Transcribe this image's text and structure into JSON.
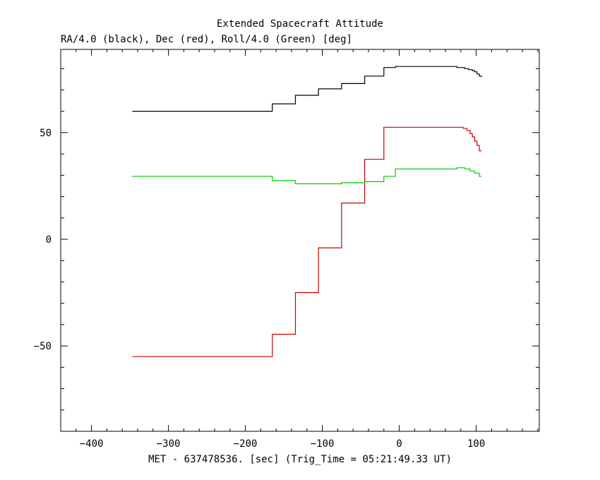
{
  "chart_data": {
    "type": "line",
    "title": "Extended Spacecraft Attitude",
    "subtitle": "RA/4.0 (black), Dec (red), Roll/4.0 (Green) [deg]",
    "xlabel": "MET - 637478536. [sec] (Trig_Time = 05:21:49.33 UT)",
    "ylabel": "",
    "xlim": [
      -440,
      182
    ],
    "ylim": [
      -90,
      89
    ],
    "x_ticks": [
      -400,
      -300,
      -200,
      -100,
      0,
      100
    ],
    "x_tick_labels": [
      "−400",
      "−300",
      "−200",
      "−100",
      "0",
      "100"
    ],
    "y_ticks": [
      -50,
      0,
      50
    ],
    "y_tick_labels": [
      "−50",
      "0",
      "50"
    ],
    "grid": false,
    "legend": "none",
    "step": true,
    "series": [
      {
        "color": "#000000",
        "x": [
          -347,
          -165,
          -135,
          -105,
          -75,
          -45,
          -20,
          -5,
          10,
          75,
          85,
          90,
          95,
          98,
          101,
          104,
          107
        ],
        "y": [
          60,
          63.5,
          67.5,
          70.5,
          73,
          76.5,
          80.5,
          81,
          81,
          80.5,
          80,
          79.5,
          79,
          78.5,
          77.5,
          76.5,
          76
        ]
      },
      {
        "color": "#cc0000",
        "x": [
          -347,
          -165,
          -135,
          -105,
          -75,
          -45,
          -20,
          75,
          83,
          88,
          92,
          95,
          98,
          101,
          104,
          107
        ],
        "y": [
          -55,
          -44.5,
          -25,
          -4,
          17,
          37.5,
          52.5,
          52.5,
          52,
          51,
          49.5,
          48,
          46,
          44,
          41.5,
          41.5
        ]
      },
      {
        "color": "#00cc00",
        "x": [
          -347,
          -165,
          -135,
          -75,
          -45,
          -20,
          -5,
          75,
          85,
          92,
          98,
          104,
          107
        ],
        "y": [
          29.5,
          27.5,
          26,
          26.5,
          27,
          29.5,
          33,
          33.5,
          33,
          32,
          31,
          29.5,
          29.5
        ]
      }
    ]
  }
}
